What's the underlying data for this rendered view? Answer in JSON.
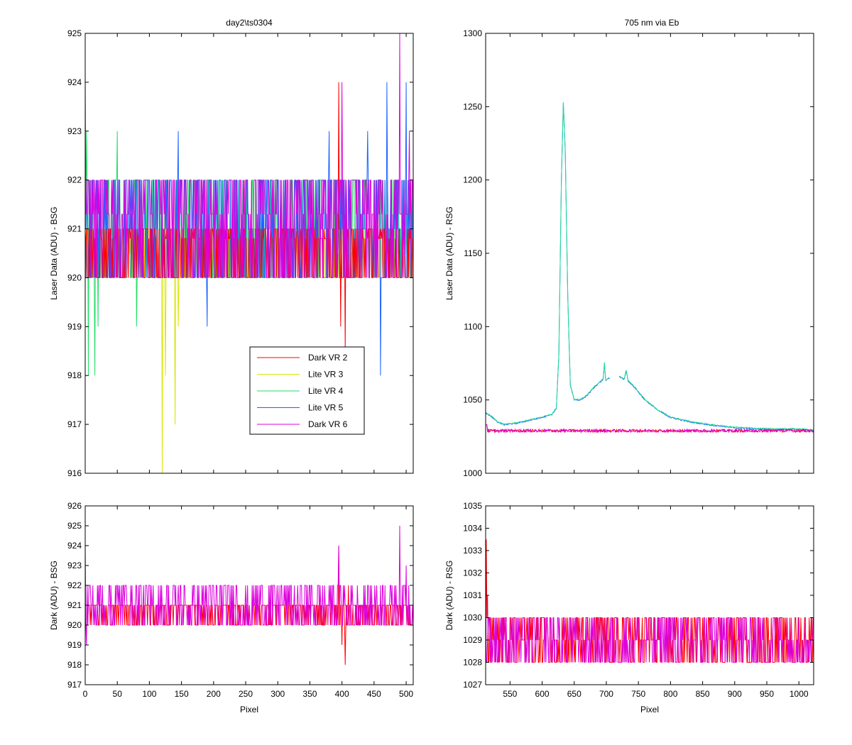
{
  "chart_data": [
    {
      "id": "top-left",
      "type": "line",
      "title": "day2\\ts0304",
      "xlabel": "",
      "ylabel": "Laser Data (ADU) - BSG",
      "xlim": [
        0,
        511
      ],
      "ylim": [
        916,
        925
      ],
      "xticks": [
        0,
        50,
        100,
        150,
        200,
        250,
        300,
        350,
        400,
        450,
        500
      ],
      "yticks": [
        916,
        917,
        918,
        919,
        920,
        921,
        922,
        923,
        924,
        925
      ],
      "show_xtick_labels": false,
      "legend": {
        "placement": "lower-right-inside",
        "entries": [
          {
            "name": "Dark VR 2",
            "color": "#ff0000"
          },
          {
            "name": "Lite VR 3",
            "color": "#d9e600"
          },
          {
            "name": "Lite VR 4",
            "color": "#22dd66"
          },
          {
            "name": "Lite VR 5",
            "color": "#1c64ff"
          },
          {
            "name": "Dark VR 6",
            "color": "#dd00dd"
          }
        ]
      },
      "series": [
        {
          "name": "Lite VR 3",
          "color": "#d9e600",
          "base": 920.5,
          "noise_low": 920,
          "noise_high": 921,
          "features": [
            [
              120,
              916
            ],
            [
              125,
              918
            ],
            [
              140,
              917
            ],
            [
              145,
              919
            ],
            [
              400,
              921.5
            ]
          ]
        },
        {
          "name": "Lite VR 4",
          "color": "#22dd66",
          "base": 921,
          "noise_low": 920,
          "noise_high": 922,
          "features": [
            [
              2,
              923
            ],
            [
              5,
              918
            ],
            [
              15,
              918
            ],
            [
              20,
              919
            ],
            [
              50,
              923
            ],
            [
              80,
              919
            ]
          ]
        },
        {
          "name": "Lite VR 5",
          "color": "#1c64ff",
          "base": 921,
          "noise_low": 920,
          "noise_high": 922,
          "features": [
            [
              145,
              923
            ],
            [
              190,
              919
            ],
            [
              380,
              923
            ],
            [
              440,
              923
            ],
            [
              460,
              918
            ],
            [
              470,
              924
            ],
            [
              500,
              924
            ]
          ]
        },
        {
          "name": "Dark VR 2",
          "color": "#ff0000",
          "base": 920.8,
          "noise_low": 920,
          "noise_high": 921,
          "features": [
            [
              395,
              924
            ],
            [
              398,
              919
            ],
            [
              405,
              918.5
            ]
          ]
        },
        {
          "name": "Dark VR 6",
          "color": "#dd00dd",
          "base": 921.3,
          "noise_low": 920,
          "noise_high": 922,
          "features": [
            [
              0,
              924
            ],
            [
              400,
              924
            ],
            [
              490,
              925
            ],
            [
              505,
              923
            ]
          ]
        }
      ]
    },
    {
      "id": "top-right",
      "type": "line",
      "title": "705 nm via Eb",
      "xlabel": "",
      "ylabel": "Laser Data (ADU) - RSG",
      "xlim": [
        512,
        1023
      ],
      "ylim": [
        1000,
        1300
      ],
      "xticks": [
        550,
        600,
        650,
        700,
        750,
        800,
        850,
        900,
        950,
        1000
      ],
      "yticks": [
        1000,
        1050,
        1100,
        1150,
        1200,
        1250,
        1300
      ],
      "show_xtick_labels": false,
      "lite_curve": {
        "colors": [
          "#1c64ff",
          "#22dd99"
        ],
        "points": [
          [
            512,
            1041
          ],
          [
            520,
            1039
          ],
          [
            530,
            1035
          ],
          [
            540,
            1033
          ],
          [
            560,
            1034
          ],
          [
            580,
            1036
          ],
          [
            600,
            1038
          ],
          [
            615,
            1040
          ],
          [
            622,
            1044
          ],
          [
            626,
            1080
          ],
          [
            630,
            1200
          ],
          [
            633,
            1253
          ],
          [
            636,
            1220
          ],
          [
            640,
            1120
          ],
          [
            644,
            1060
          ],
          [
            650,
            1050
          ],
          [
            660,
            1050
          ],
          [
            670,
            1053
          ],
          [
            680,
            1058
          ],
          [
            690,
            1062
          ],
          [
            695,
            1064
          ],
          [
            697,
            1075
          ],
          [
            699,
            1063
          ],
          [
            705,
            1065
          ]
        ],
        "points2": [
          [
            720,
            1066
          ],
          [
            728,
            1064
          ],
          [
            731,
            1070
          ],
          [
            734,
            1063
          ],
          [
            745,
            1058
          ],
          [
            760,
            1050
          ],
          [
            780,
            1043
          ],
          [
            800,
            1038
          ],
          [
            830,
            1035
          ],
          [
            860,
            1033
          ],
          [
            900,
            1031
          ],
          [
            950,
            1030
          ],
          [
            1000,
            1030
          ],
          [
            1023,
            1029
          ]
        ]
      },
      "dark_curve": {
        "colors": [
          "#ff0000",
          "#dd00dd"
        ],
        "level": 1029,
        "start": 1033,
        "noise": 1
      }
    },
    {
      "id": "bottom-left",
      "type": "line",
      "title": "",
      "xlabel": "Pixel",
      "ylabel": "Dark (ADU) - BSG",
      "xlim": [
        0,
        511
      ],
      "ylim": [
        917,
        926
      ],
      "xticks": [
        0,
        50,
        100,
        150,
        200,
        250,
        300,
        350,
        400,
        450,
        500
      ],
      "yticks": [
        917,
        918,
        919,
        920,
        921,
        922,
        923,
        924,
        925,
        926
      ],
      "show_xtick_labels": true,
      "series": [
        {
          "name": "Dark VR 2",
          "color": "#ff0000",
          "base": 921,
          "noise_low": 920,
          "noise_high": 921,
          "features": [
            [
              395,
              924
            ],
            [
              400,
              919
            ],
            [
              405,
              918
            ],
            [
              410,
              922
            ]
          ]
        },
        {
          "name": "Dark VR 6",
          "color": "#dd00dd",
          "base": 921,
          "noise_low": 920,
          "noise_high": 922,
          "features": [
            [
              0,
              924
            ],
            [
              2,
              919
            ],
            [
              60,
              922
            ],
            [
              395,
              924
            ],
            [
              490,
              925
            ],
            [
              500,
              923
            ]
          ]
        }
      ]
    },
    {
      "id": "bottom-right",
      "type": "line",
      "title": "",
      "xlabel": "Pixel",
      "ylabel": "Dark (ADU) - RSG",
      "xlim": [
        512,
        1023
      ],
      "ylim": [
        1027,
        1035
      ],
      "xticks": [
        550,
        600,
        650,
        700,
        750,
        800,
        850,
        900,
        950,
        1000
      ],
      "yticks": [
        1027,
        1028,
        1029,
        1030,
        1031,
        1032,
        1033,
        1034,
        1035
      ],
      "show_xtick_labels": true,
      "series": [
        {
          "name": "Dark VR 2",
          "color": "#ff0000",
          "base": 1029,
          "noise_low": 1028,
          "noise_high": 1030,
          "features": [
            [
              513,
              1033.5
            ],
            [
              515,
              1031
            ],
            [
              518,
              1030
            ]
          ]
        },
        {
          "name": "Dark VR 6",
          "color": "#dd00dd",
          "base": 1029,
          "noise_low": 1028,
          "noise_high": 1030,
          "features": [
            [
              512,
              1032
            ],
            [
              1020,
              1030
            ]
          ]
        }
      ]
    }
  ]
}
